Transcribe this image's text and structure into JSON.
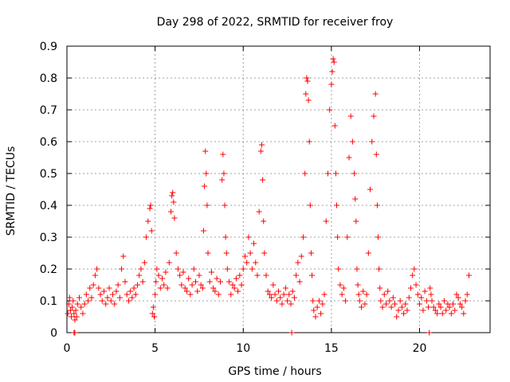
{
  "chart_data": {
    "type": "scatter",
    "title": "Day 298 of 2022, SRMTID for receiver froy",
    "xlabel": "GPS time / hours",
    "ylabel": "SRMTID / TECUs",
    "xlim": [
      0,
      24
    ],
    "ylim": [
      0,
      0.9
    ],
    "xticks": [
      0,
      5,
      10,
      15,
      20
    ],
    "xtick_labels": [
      "0",
      "5",
      "10",
      "15",
      "20"
    ],
    "yticks": [
      0,
      0.1,
      0.2,
      0.3,
      0.4,
      0.5,
      0.6,
      0.7,
      0.8,
      0.9
    ],
    "ytick_labels": [
      "0",
      "0.1",
      "0.2",
      "0.3",
      "0.4",
      "0.5",
      "0.6",
      "0.7",
      "0.8",
      "0.9"
    ],
    "grid": true,
    "marker": "plus",
    "series": [
      {
        "name": "SRMTID",
        "color": "#ff0000",
        "x": [
          0.05,
          0.1,
          0.15,
          0.2,
          0.25,
          0.3,
          0.35,
          0.4,
          0.45,
          0.5,
          0.55,
          0.6,
          0.7,
          0.8,
          0.9,
          1.0,
          1.1,
          1.2,
          1.3,
          1.4,
          1.5,
          1.6,
          1.7,
          1.8,
          1.9,
          2.0,
          2.1,
          2.2,
          2.3,
          2.4,
          2.5,
          2.6,
          2.7,
          2.8,
          2.9,
          3.0,
          3.1,
          3.2,
          3.3,
          3.4,
          3.5,
          3.6,
          3.7,
          3.8,
          3.9,
          4.0,
          4.1,
          4.2,
          4.3,
          4.4,
          4.5,
          4.6,
          4.7,
          4.75,
          4.8,
          4.85,
          4.9,
          4.95,
          5.0,
          5.05,
          5.1,
          5.2,
          5.3,
          5.4,
          5.5,
          5.6,
          5.7,
          5.8,
          5.9,
          5.95,
          6.0,
          6.05,
          6.1,
          6.2,
          6.3,
          6.4,
          6.5,
          6.6,
          6.7,
          6.8,
          6.9,
          7.0,
          7.1,
          7.2,
          7.3,
          7.4,
          7.5,
          7.6,
          7.7,
          7.75,
          7.8,
          7.85,
          7.9,
          7.95,
          8.0,
          8.1,
          8.2,
          8.3,
          8.4,
          8.5,
          8.6,
          8.7,
          8.8,
          8.85,
          8.9,
          8.95,
          9.0,
          9.05,
          9.1,
          9.2,
          9.3,
          9.4,
          9.5,
          9.6,
          9.7,
          9.8,
          9.9,
          10.0,
          10.1,
          10.2,
          10.3,
          10.4,
          10.5,
          10.6,
          10.7,
          10.8,
          10.9,
          11.0,
          11.05,
          11.1,
          11.15,
          11.2,
          11.3,
          11.4,
          11.5,
          11.6,
          11.7,
          11.8,
          11.9,
          12.0,
          12.1,
          12.2,
          12.3,
          12.4,
          12.5,
          12.6,
          12.7,
          12.8,
          12.9,
          13.0,
          13.1,
          13.2,
          13.3,
          13.4,
          13.5,
          13.55,
          13.6,
          13.65,
          13.7,
          13.75,
          13.8,
          13.85,
          13.9,
          13.95,
          14.0,
          14.1,
          14.2,
          14.3,
          14.4,
          14.5,
          14.6,
          14.7,
          14.8,
          14.9,
          15.0,
          15.05,
          15.1,
          15.15,
          15.2,
          15.25,
          15.3,
          15.35,
          15.4,
          15.5,
          15.6,
          15.7,
          15.8,
          15.9,
          16.0,
          16.1,
          16.2,
          16.3,
          16.35,
          16.4,
          16.45,
          16.5,
          16.55,
          16.6,
          16.7,
          16.8,
          16.9,
          17.0,
          17.1,
          17.2,
          17.3,
          17.4,
          17.5,
          17.55,
          17.6,
          17.65,
          17.7,
          17.75,
          17.8,
          17.9,
          18.0,
          18.1,
          18.2,
          18.3,
          18.4,
          18.5,
          18.6,
          18.7,
          18.8,
          18.9,
          19.0,
          19.1,
          19.2,
          19.3,
          19.4,
          19.5,
          19.6,
          19.7,
          19.8,
          19.9,
          20.0,
          20.1,
          20.2,
          20.3,
          20.4,
          20.5,
          20.6,
          20.65,
          20.7,
          20.8,
          20.9,
          21.0,
          21.1,
          21.2,
          21.3,
          21.4,
          21.5,
          21.6,
          21.7,
          21.8,
          21.9,
          22.0,
          22.1,
          22.2,
          22.3,
          22.4,
          22.5,
          22.6,
          22.7,
          22.8,
          0.4,
          0.45,
          12.75,
          20.55
        ],
        "y": [
          0.06,
          0.09,
          0.11,
          0.07,
          0.05,
          0.08,
          0.1,
          0.06,
          0.04,
          0.07,
          0.05,
          0.09,
          0.11,
          0.08,
          0.06,
          0.09,
          0.12,
          0.1,
          0.14,
          0.11,
          0.15,
          0.18,
          0.2,
          0.14,
          0.12,
          0.1,
          0.13,
          0.09,
          0.11,
          0.14,
          0.1,
          0.12,
          0.09,
          0.13,
          0.15,
          0.11,
          0.2,
          0.24,
          0.16,
          0.12,
          0.1,
          0.13,
          0.11,
          0.14,
          0.12,
          0.15,
          0.18,
          0.2,
          0.16,
          0.22,
          0.3,
          0.35,
          0.39,
          0.4,
          0.32,
          0.06,
          0.08,
          0.05,
          0.12,
          0.16,
          0.2,
          0.18,
          0.14,
          0.17,
          0.15,
          0.19,
          0.14,
          0.22,
          0.38,
          0.43,
          0.44,
          0.41,
          0.36,
          0.25,
          0.2,
          0.18,
          0.15,
          0.19,
          0.14,
          0.13,
          0.17,
          0.12,
          0.15,
          0.2,
          0.16,
          0.13,
          0.18,
          0.15,
          0.14,
          0.32,
          0.46,
          0.57,
          0.5,
          0.4,
          0.25,
          0.16,
          0.19,
          0.14,
          0.13,
          0.17,
          0.12,
          0.16,
          0.48,
          0.56,
          0.5,
          0.4,
          0.3,
          0.25,
          0.2,
          0.16,
          0.12,
          0.15,
          0.14,
          0.17,
          0.13,
          0.18,
          0.15,
          0.2,
          0.24,
          0.22,
          0.3,
          0.25,
          0.2,
          0.28,
          0.22,
          0.18,
          0.38,
          0.57,
          0.59,
          0.48,
          0.35,
          0.25,
          0.18,
          0.13,
          0.12,
          0.11,
          0.15,
          0.12,
          0.1,
          0.13,
          0.11,
          0.09,
          0.12,
          0.14,
          0.1,
          0.12,
          0.09,
          0.13,
          0.11,
          0.18,
          0.22,
          0.16,
          0.24,
          0.3,
          0.5,
          0.75,
          0.8,
          0.79,
          0.73,
          0.6,
          0.4,
          0.25,
          0.18,
          0.1,
          0.07,
          0.05,
          0.08,
          0.1,
          0.06,
          0.09,
          0.12,
          0.35,
          0.5,
          0.7,
          0.78,
          0.82,
          0.86,
          0.85,
          0.65,
          0.5,
          0.4,
          0.3,
          0.2,
          0.15,
          0.12,
          0.14,
          0.1,
          0.3,
          0.55,
          0.68,
          0.6,
          0.5,
          0.42,
          0.35,
          0.2,
          0.15,
          0.12,
          0.1,
          0.08,
          0.13,
          0.09,
          0.12,
          0.25,
          0.45,
          0.6,
          0.68,
          0.75,
          0.56,
          0.4,
          0.3,
          0.2,
          0.14,
          0.1,
          0.08,
          0.12,
          0.09,
          0.13,
          0.1,
          0.08,
          0.11,
          0.09,
          0.05,
          0.07,
          0.1,
          0.08,
          0.06,
          0.09,
          0.07,
          0.11,
          0.14,
          0.18,
          0.2,
          0.15,
          0.12,
          0.09,
          0.11,
          0.07,
          0.13,
          0.1,
          0.08,
          0.14,
          0.12,
          0.1,
          0.08,
          0.07,
          0.06,
          0.09,
          0.08,
          0.06,
          0.1,
          0.07,
          0.09,
          0.08,
          0.06,
          0.09,
          0.07,
          0.12,
          0.11,
          0.09,
          0.08,
          0.06,
          0.1,
          0.12,
          0.18,
          0.0,
          0.0,
          0.0,
          0.0
        ]
      }
    ]
  }
}
